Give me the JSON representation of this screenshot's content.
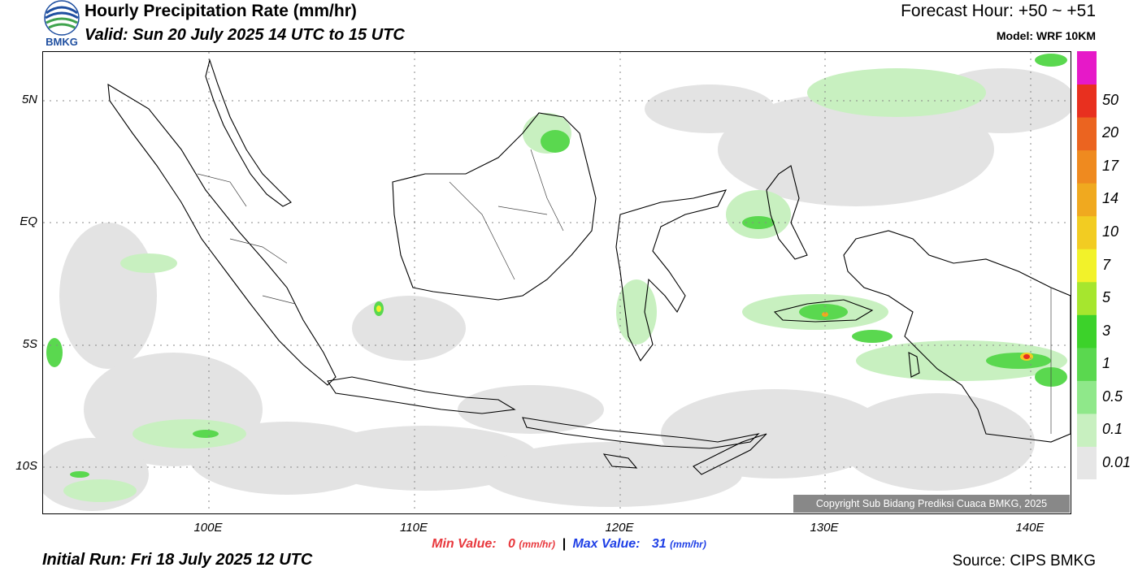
{
  "logo": {
    "icon": "bmkg-logo-icon",
    "text": "BMKG",
    "colors": [
      "#1f4fa0",
      "#3fa34d"
    ]
  },
  "header": {
    "title": "Hourly Precipitation Rate (mm/hr)",
    "valid": "Valid: Sun 20 July 2025 14 UTC to 15 UTC",
    "forecast_hour": "Forecast Hour: +50 ~ +51",
    "model": "Model: WRF 10KM"
  },
  "map": {
    "lat_labels": [
      "5N",
      "EQ",
      "5S",
      "10S"
    ],
    "lon_labels": [
      "100E",
      "110E",
      "120E",
      "130E",
      "140E"
    ],
    "copyright": "Copyright Sub Bidang Prediksi Cuaca BMKG, 2025"
  },
  "legend": {
    "unit": "mm/hr",
    "labels": [
      "0.01",
      "0.1",
      "0.5",
      "1",
      "3",
      "5",
      "7",
      "10",
      "14",
      "17",
      "20",
      "50"
    ],
    "colors": [
      "#e6e6e6",
      "#c8f0c0",
      "#8fe88a",
      "#5ad84f",
      "#3cd22a",
      "#a6e62e",
      "#f2f22a",
      "#f2cc22",
      "#f0a91f",
      "#ef8a1f",
      "#eb6420",
      "#e8301f",
      "#e619c8"
    ]
  },
  "stats": {
    "min_label": "Min Value:",
    "min_value": "0",
    "separator": "|",
    "max_label": "Max Value:",
    "max_value": "31",
    "unit": "(mm/hr)"
  },
  "footer": {
    "initial_run": "Initial Run: Fri 18 July 2025 12 UTC",
    "source": "Source: CIPS BMKG"
  }
}
